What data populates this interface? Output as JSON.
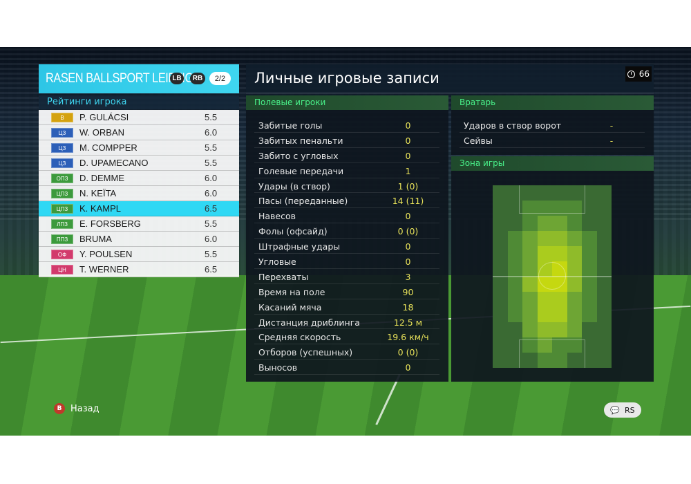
{
  "team": {
    "name": "RASEN BALLSPORT LEIPZIG",
    "lb_label": "LB",
    "rb_label": "RB",
    "page_indicator": "2/2"
  },
  "ratings_title": "Рейтинги игрока",
  "players": [
    {
      "pos": "В",
      "pos_color": "#d4a20f",
      "name": "P. GULÁCSI",
      "rating": "5.5"
    },
    {
      "pos": "ЦЗ",
      "pos_color": "#2c5fb8",
      "name": "W. ORBAN",
      "rating": "6.0"
    },
    {
      "pos": "ЦЗ",
      "pos_color": "#2c5fb8",
      "name": "M. COMPPER",
      "rating": "5.5"
    },
    {
      "pos": "ЦЗ",
      "pos_color": "#2c5fb8",
      "name": "D. UPAMECANO",
      "rating": "5.5"
    },
    {
      "pos": "ОПЗ",
      "pos_color": "#3c9a3c",
      "name": "D. DEMME",
      "rating": "6.0"
    },
    {
      "pos": "ЦПЗ",
      "pos_color": "#3c9a3c",
      "name": "N. KEÏTA",
      "rating": "6.0"
    },
    {
      "pos": "ЦПЗ",
      "pos_color": "#3c9a3c",
      "name": "K. KAMPL",
      "rating": "6.5"
    },
    {
      "pos": "ЛПЗ",
      "pos_color": "#3c9a3c",
      "name": "E. FORSBERG",
      "rating": "5.5"
    },
    {
      "pos": "ППЗ",
      "pos_color": "#3c9a3c",
      "name": "BRUMA",
      "rating": "6.0"
    },
    {
      "pos": "ОФ",
      "pos_color": "#d23a6c",
      "name": "Y. POULSEN",
      "rating": "5.5"
    },
    {
      "pos": "ЦН",
      "pos_color": "#d23a6c",
      "name": "T. WERNER",
      "rating": "6.5"
    }
  ],
  "selected_player_index": 6,
  "main": {
    "title": "Личные игровые записи",
    "timer": "66"
  },
  "field_players": {
    "title": "Полевые игроки",
    "stats": [
      {
        "label": "Забитые голы",
        "value": "0"
      },
      {
        "label": "Забитых пенальти",
        "value": "0"
      },
      {
        "label": "Забито с угловых",
        "value": "0"
      },
      {
        "label": "Голевые передачи",
        "value": "1"
      },
      {
        "label": "Удары (в створ)",
        "value": "1 (0)"
      },
      {
        "label": "Пасы (переданные)",
        "value": "14 (11)"
      },
      {
        "label": "Навесов",
        "value": "0"
      },
      {
        "label": "Фолы (офсайд)",
        "value": "0 (0)"
      },
      {
        "label": "Штрафные удары",
        "value": "0"
      },
      {
        "label": "Угловые",
        "value": "0"
      },
      {
        "label": "Перехваты",
        "value": "3"
      },
      {
        "label": "Время на поле",
        "value": "90"
      },
      {
        "label": "Касаний мяча",
        "value": "18"
      },
      {
        "label": "Дистанция дриблинга",
        "value": "12.5 м"
      },
      {
        "label": "Средняя скорость",
        "value": "19.6 км/ч"
      },
      {
        "label": "Отборов (успешных)",
        "value": "0 (0)"
      },
      {
        "label": "Выносов",
        "value": "0"
      }
    ]
  },
  "goalkeeper": {
    "title": "Вратарь",
    "stats": [
      {
        "label": "Ударов в створ ворот",
        "value": "-"
      },
      {
        "label": "Сейвы",
        "value": "-"
      }
    ]
  },
  "zone": {
    "title": "Зона игры",
    "heat_levels": [
      [
        0,
        0,
        0,
        0,
        0,
        0,
        0,
        0
      ],
      [
        0,
        0,
        1,
        1,
        1,
        1,
        0,
        0
      ],
      [
        0,
        0,
        1,
        2,
        2,
        1,
        0,
        0
      ],
      [
        0,
        1,
        2,
        3,
        3,
        2,
        1,
        0
      ],
      [
        0,
        1,
        2,
        4,
        4,
        3,
        1,
        0
      ],
      [
        0,
        1,
        2,
        4,
        5,
        3,
        1,
        0
      ],
      [
        0,
        1,
        3,
        5,
        5,
        3,
        1,
        0
      ],
      [
        0,
        1,
        2,
        4,
        4,
        2,
        1,
        0
      ],
      [
        0,
        1,
        2,
        4,
        4,
        2,
        1,
        0
      ],
      [
        0,
        0,
        2,
        3,
        3,
        2,
        0,
        0
      ],
      [
        0,
        0,
        1,
        2,
        1,
        1,
        0,
        0
      ],
      [
        0,
        0,
        0,
        1,
        1,
        0,
        0,
        0
      ]
    ],
    "heat_colors": [
      "#3a6a33",
      "#4f8a35",
      "#6ea534",
      "#8fbb2a",
      "#aacc1e",
      "#c5d810"
    ]
  },
  "footer": {
    "back_button": "B",
    "back_label": "Назад",
    "rs_label": "RS"
  }
}
